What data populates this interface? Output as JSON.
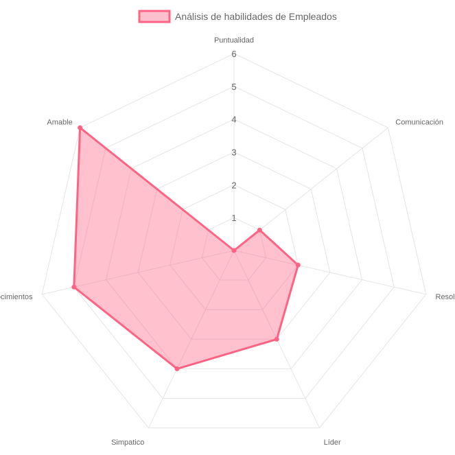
{
  "chart_data": {
    "type": "radar",
    "title": "",
    "labels": [
      "Puntualidad",
      "Comunicación",
      "Resolutivo",
      "Líder",
      "Simpatico",
      "Conocimientos",
      "Amable"
    ],
    "series": [
      {
        "name": "Análisis de habilidades de Empleados",
        "values": [
          0,
          1,
          2,
          3,
          4,
          5,
          6
        ],
        "color": "#FF6384",
        "fill": "rgba(255, 99, 132, 0.4)"
      }
    ],
    "r_ticks": [
      1,
      2,
      3,
      4,
      5,
      6
    ],
    "rlim": [
      0,
      6
    ],
    "legend_position": "top",
    "grid": true
  }
}
